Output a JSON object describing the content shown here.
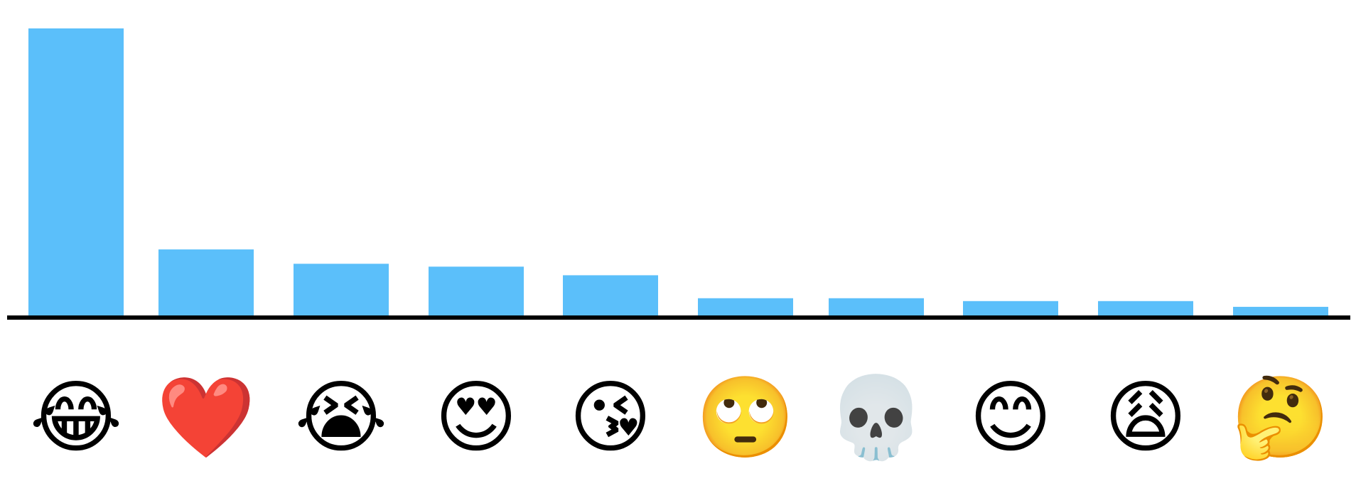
{
  "chart_data": {
    "type": "bar",
    "title": "",
    "xlabel": "",
    "ylabel": "",
    "grid": false,
    "legend": "none",
    "ylim": [
      0,
      100
    ],
    "bar_color": "#5bbffa",
    "axis_color": "#000000",
    "categories": [
      {
        "label": "😂",
        "icon": "face-with-tears-of-joy-icon"
      },
      {
        "label": "❤️",
        "icon": "red-heart-icon"
      },
      {
        "label": "😭",
        "icon": "loudly-crying-face-icon"
      },
      {
        "label": "😍",
        "icon": "heart-eyes-face-icon"
      },
      {
        "label": "😘",
        "icon": "face-blowing-kiss-icon"
      },
      {
        "label": "🙄",
        "icon": "face-rolling-eyes-icon"
      },
      {
        "label": "💀",
        "icon": "skull-icon"
      },
      {
        "label": "😊",
        "icon": "smiling-face-with-smiling-eyes-icon"
      },
      {
        "label": "😩",
        "icon": "weary-face-icon"
      },
      {
        "label": "🤔",
        "icon": "thinking-face-icon"
      }
    ],
    "values": [
      100,
      23,
      18,
      17,
      14,
      6,
      6,
      5,
      5,
      3
    ]
  }
}
